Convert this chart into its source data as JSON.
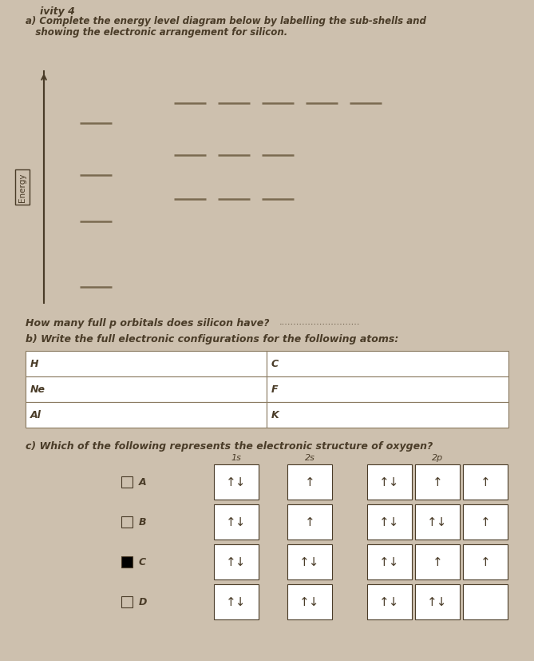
{
  "bg_color": "#cdc0ae",
  "text_color": "#4a3c28",
  "line_color": "#7a6a50",
  "header": "ivity 4",
  "title_line1": "a) Complete the energy level diagram below by labelling the sub-shells and",
  "title_line2": "   showing the electronic arrangement for silicon.",
  "energy_label": "Energy",
  "how_many_text": "How many full p orbitals does silicon have?",
  "dotted": "............................",
  "part_b_text": "b) Write the full electronic configurations for the following atoms:",
  "table_rows": [
    [
      "H",
      "C"
    ],
    [
      "Ne",
      "F"
    ],
    [
      "Al",
      "K"
    ]
  ],
  "part_c_text": "c) Which of the following represents the electronic structure of oxygen?",
  "options": [
    {
      "label": "A",
      "checked": false,
      "s1": "↑↓",
      "s2": "↑",
      "p": [
        "↑↓",
        "↑",
        "↑"
      ]
    },
    {
      "label": "B",
      "checked": false,
      "s1": "↑↓",
      "s2": "↑",
      "p": [
        "↑↓",
        "↑↓",
        "↑"
      ]
    },
    {
      "label": "C",
      "checked": true,
      "s1": "↑↓",
      "s2": "↑↓",
      "p": [
        "↑↓",
        "↑",
        "↑"
      ]
    },
    {
      "label": "D",
      "checked": false,
      "s1": "↑↓",
      "s2": "↑↓",
      "p": [
        "↑↓",
        "↑↓",
        ""
      ]
    }
  ]
}
